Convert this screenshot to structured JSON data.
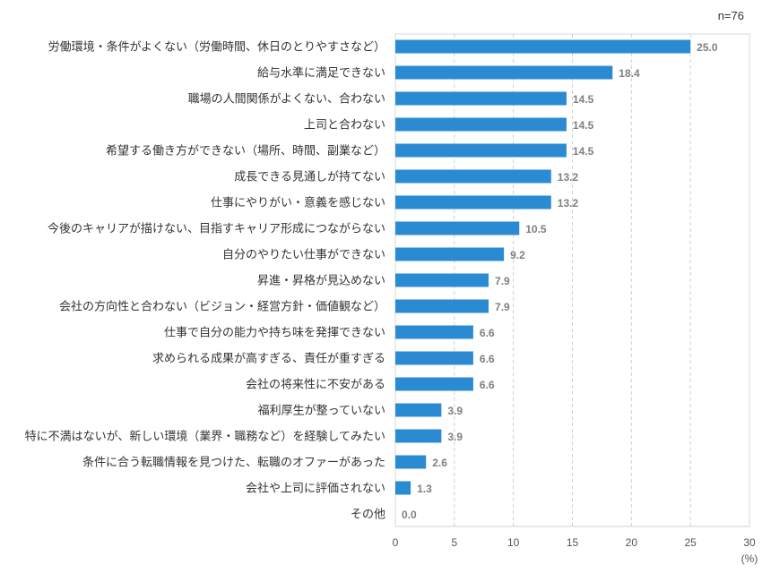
{
  "sample_size": "n=76",
  "chart_data": {
    "type": "bar",
    "orientation": "horizontal",
    "categories": [
      "労働環境・条件がよくない（労働時間、休日のとりやすさなど）",
      "給与水準に満足できない",
      "職場の人間関係がよくない、合わない",
      "上司と合わない",
      "希望する働き方ができない（場所、時間、副業など）",
      "成長できる見通しが持てない",
      "仕事にやりがい・意義を感じない",
      "今後のキャリアが描けない、目指すキャリア形成につながらない",
      "自分のやりたい仕事ができない",
      "昇進・昇格が見込めない",
      "会社の方向性と合わない（ビジョン・経営方針・価値観など）",
      "仕事で自分の能力や持ち味を発揮できない",
      "求められる成果が高すぎる、責任が重すぎる",
      "会社の将来性に不安がある",
      "福利厚生が整っていない",
      "特に不満はないが、新しい環境（業界・職務など）を経験してみたい",
      "条件に合う転職情報を見つけた、転職のオファーがあった",
      "会社や上司に評価されない",
      "その他"
    ],
    "values": [
      25.0,
      18.4,
      14.5,
      14.5,
      14.5,
      13.2,
      13.2,
      10.5,
      9.2,
      7.9,
      7.9,
      6.6,
      6.6,
      6.6,
      3.9,
      3.9,
      2.6,
      1.3,
      0.0
    ],
    "value_labels": [
      "25.0",
      "18.4",
      "14.5",
      "14.5",
      "14.5",
      "13.2",
      "13.2",
      "10.5",
      "9.2",
      "7.9",
      "7.9",
      "6.6",
      "6.6",
      "6.6",
      "3.9",
      "3.9",
      "2.6",
      "1.3",
      "0.0"
    ],
    "xlim": [
      0,
      30
    ],
    "xticks": [
      "0",
      "5",
      "10",
      "15",
      "20",
      "25",
      "30"
    ],
    "xlabel": "(%)",
    "grid": "vertical dashed",
    "bar_color": "#2a8bd3",
    "title": ""
  }
}
